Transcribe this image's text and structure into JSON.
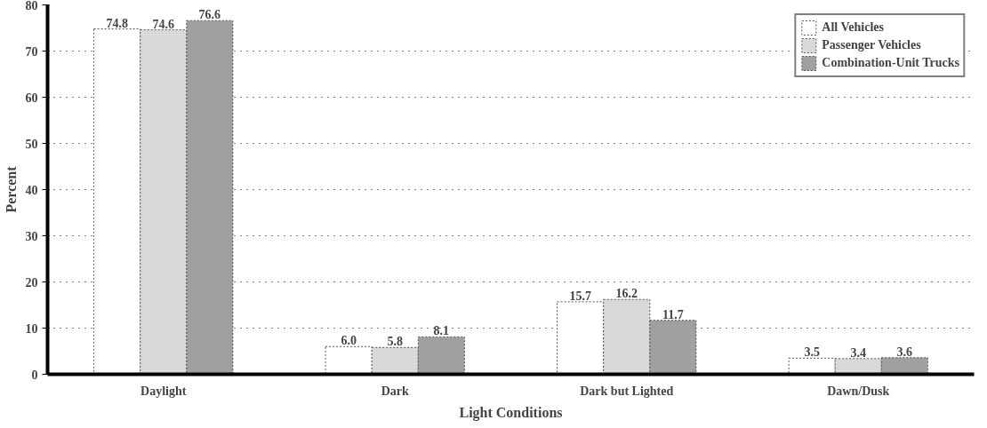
{
  "chart_data": {
    "type": "bar",
    "xlabel": "Light Conditions",
    "ylabel": "Percent",
    "categories": [
      "Daylight",
      "Dark",
      "Dark but Lighted",
      "Dawn/Dusk"
    ],
    "series": [
      {
        "name": "All Vehicles",
        "color": "#ffffff",
        "values": [
          74.8,
          6.0,
          15.7,
          3.5
        ],
        "value_labels": [
          "74.8",
          "6.0",
          "15.7",
          "3.5"
        ]
      },
      {
        "name": "Passenger Vehicles",
        "color": "#d9d9d9",
        "values": [
          74.6,
          5.8,
          16.2,
          3.4
        ],
        "value_labels": [
          "74.6",
          "5.8",
          "16.2",
          "3.4"
        ]
      },
      {
        "name": "Combination-Unit Trucks",
        "color": "#a0a0a0",
        "values": [
          76.6,
          8.1,
          11.7,
          3.6
        ],
        "value_labels": [
          "76.6",
          "8.1",
          "11.7",
          "3.6"
        ]
      }
    ],
    "ylim": [
      0,
      80
    ],
    "yticks": [
      0,
      10,
      20,
      30,
      40,
      50,
      60,
      70,
      80
    ],
    "grid": "y",
    "legend": "top right"
  }
}
